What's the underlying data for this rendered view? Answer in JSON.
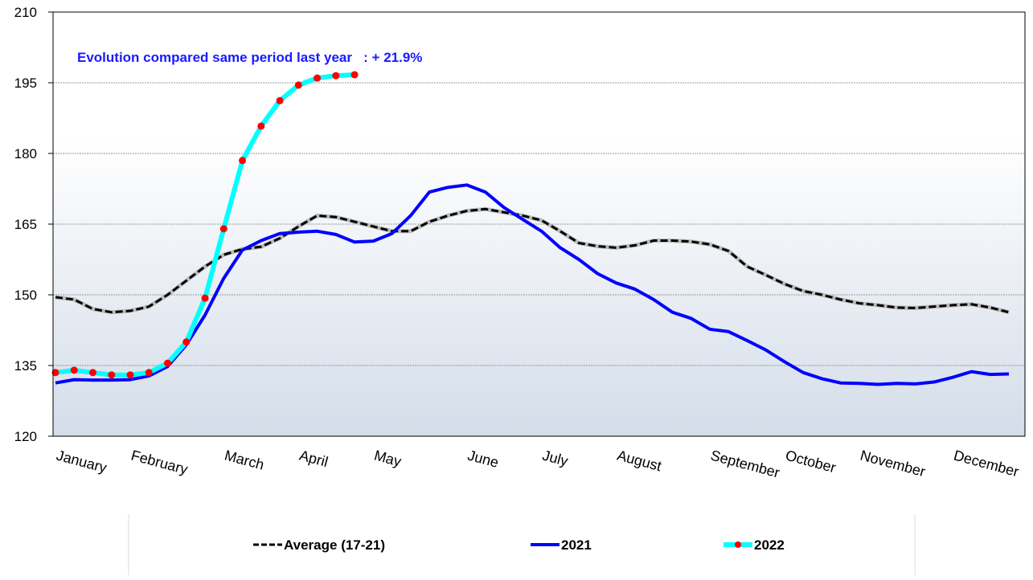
{
  "chart_data": {
    "type": "line",
    "annotation": "Evolution compared same period last year   : + 21.9%",
    "categories": [
      "January",
      null,
      null,
      null,
      "February",
      null,
      null,
      null,
      null,
      "March",
      null,
      null,
      null,
      "April",
      null,
      null,
      null,
      "May",
      null,
      null,
      null,
      null,
      "June",
      null,
      null,
      null,
      "July",
      null,
      null,
      null,
      "August",
      null,
      null,
      null,
      null,
      "September",
      null,
      null,
      null,
      "October",
      null,
      null,
      null,
      "November",
      null,
      null,
      null,
      null,
      "December",
      null,
      null,
      null
    ],
    "series": [
      {
        "name": "Average (17-21)",
        "color": "#000000",
        "dashed": true,
        "values": [
          149.5,
          149,
          147,
          146.3,
          146.6,
          147.5,
          150,
          153,
          156,
          158.5,
          159.7,
          160.2,
          162,
          164.5,
          166.8,
          166.5,
          165.5,
          164.5,
          163.5,
          163.5,
          165.5,
          166.8,
          167.8,
          168.2,
          167.5,
          166.8,
          165.8,
          163.5,
          161,
          160.3,
          160,
          160.5,
          161.5,
          161.5,
          161.3,
          160.7,
          159.3,
          156,
          154.2,
          152.3,
          150.8,
          150,
          149,
          148.2,
          147.8,
          147.3,
          147.2,
          147.5,
          147.8,
          148,
          147.3,
          146.3
        ]
      },
      {
        "name": "2021",
        "color": "#0000ff",
        "values": [
          131.3,
          132,
          131.9,
          131.9,
          132,
          132.8,
          134.8,
          139.4,
          145.7,
          153.5,
          159.5,
          161.5,
          163,
          163.3,
          163.5,
          162.8,
          161.2,
          161.4,
          163,
          166.8,
          171.8,
          172.8,
          173.3,
          171.8,
          168.5,
          166,
          163.5,
          160,
          157.5,
          154.5,
          152.5,
          151.2,
          149,
          146.3,
          145,
          142.7,
          142.2,
          140.3,
          138.3,
          135.8,
          133.5,
          132.2,
          131.3,
          131.2,
          131,
          131.2,
          131.1,
          131.5,
          132.5,
          133.7,
          133.1,
          133.2
        ]
      },
      {
        "name": "2022",
        "color": "#00ffff",
        "marker_color": "#ff0000",
        "values": [
          133.5,
          134,
          133.5,
          133,
          133,
          133.5,
          135.5,
          140,
          149.3,
          164,
          178.5,
          185.8,
          191.2,
          194.5,
          196,
          196.5,
          196.7,
          null,
          null,
          null,
          null,
          null,
          null,
          null,
          null,
          null,
          null,
          null,
          null,
          null,
          null,
          null,
          null,
          null,
          null,
          null,
          null,
          null,
          null,
          null,
          null,
          null,
          null,
          null,
          null,
          null,
          null,
          null,
          null,
          null,
          null,
          null
        ]
      }
    ],
    "ylim": [
      120,
      210
    ],
    "yticks": [
      120,
      135,
      150,
      165,
      180,
      195,
      210
    ],
    "grid": true
  }
}
